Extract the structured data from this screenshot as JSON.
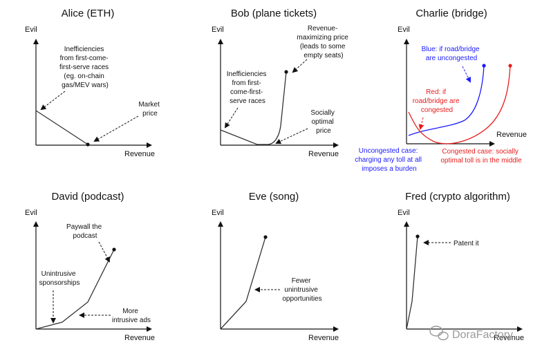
{
  "panels": {
    "alice": {
      "title": "Alice (ETH)",
      "y_label": "Evil",
      "x_label": "Revenue",
      "notes": {
        "inefficiencies": [
          "Inefficiencies",
          "from first-come-",
          "first-serve races",
          "(eg. on-chain",
          "gas/MEV wars)"
        ],
        "market": [
          "Market",
          "price"
        ]
      }
    },
    "bob": {
      "title": "Bob (plane tickets)",
      "y_label": "Evil",
      "x_label": "Revenue",
      "notes": {
        "revenue_max": [
          "Revenue-",
          "maximizing price",
          "(leads to some",
          "empty seats)"
        ],
        "inefficiencies": [
          "Inefficiencies",
          "from first-",
          "come-first-",
          "serve races"
        ],
        "socially": [
          "Socially",
          "optimal",
          "price"
        ]
      }
    },
    "charlie": {
      "title": "Charlie (bridge)",
      "y_label": "Evil",
      "x_label": "Revenue",
      "notes": {
        "blue": [
          "Blue: if road/bridge",
          "are uncongested"
        ],
        "red": [
          "Red: if",
          "road/bridge are",
          "congested"
        ],
        "uncongested_case": [
          "Uncongested case:",
          "charging any toll at all",
          "imposes a burden"
        ],
        "congested_case": [
          "Congested case: socially",
          "optimal toll is in the middle"
        ]
      }
    },
    "david": {
      "title": "David (podcast)",
      "y_label": "Evil",
      "x_label": "Revenue",
      "notes": {
        "paywall": [
          "Paywall the",
          "podcast"
        ],
        "unintrusive": [
          "Unintrusive",
          "sponsorships"
        ],
        "more": [
          "More",
          "intrusive ads"
        ]
      }
    },
    "eve": {
      "title": "Eve (song)",
      "y_label": "Evil",
      "x_label": "Revenue",
      "notes": {
        "fewer": [
          "Fewer",
          "unintrusive",
          "opportunities"
        ]
      }
    },
    "fred": {
      "title": "Fred (crypto algorithm)",
      "y_label": "Evil",
      "x_label": "Revenue",
      "notes": {
        "patent": [
          "Patent it"
        ]
      }
    }
  },
  "watermark": "DoraFactory",
  "colors": {
    "blue": "#1a1aff",
    "red": "#e81c1c",
    "ink": "#111111"
  }
}
